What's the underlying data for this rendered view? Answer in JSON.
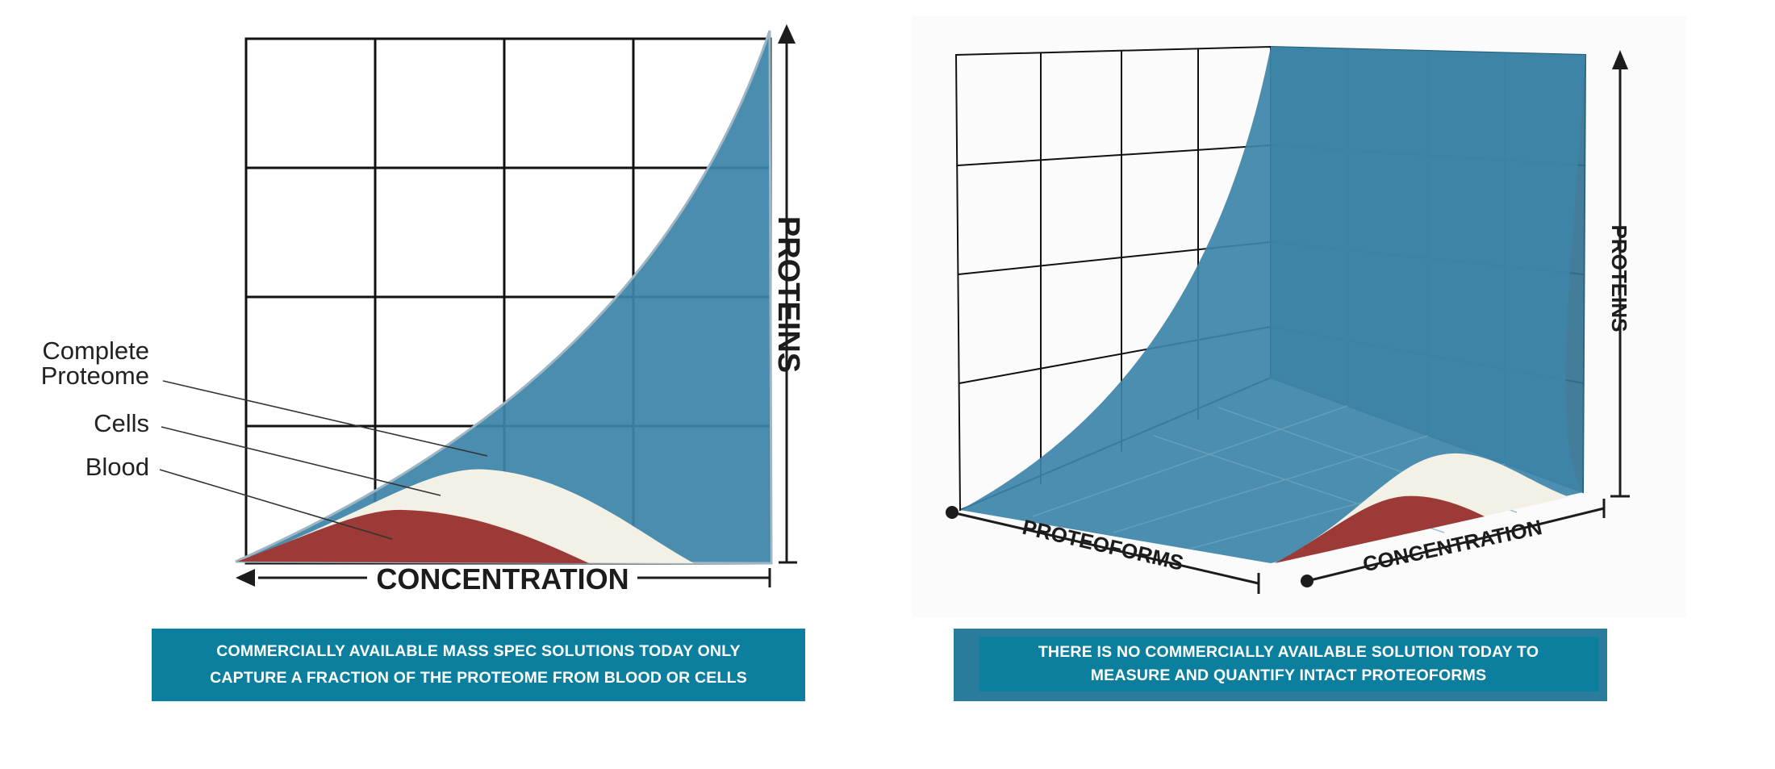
{
  "left_figure": {
    "y_axis_title": "PROTEINS",
    "x_axis_title": "CONCENTRATION",
    "labels": {
      "complete_proteome_line1": "Complete",
      "complete_proteome_line2": "Proteome",
      "cells": "Cells",
      "blood": "Blood"
    }
  },
  "right_figure": {
    "y_axis_title": "PROTEINS",
    "x_axis_title": "PROTEOFORMS",
    "z_axis_title": "CONCENTRATION"
  },
  "captions": {
    "left_line1": "COMMERCIALLY AVAILABLE MASS SPEC SOLUTIONS TODAY ONLY",
    "left_line2": "CAPTURE A FRACTION OF THE PROTEOME FROM BLOOD OR CELLS",
    "right_line1": "THERE IS NO COMMERCIALLY AVAILABLE SOLUTION TODAY TO",
    "right_line2": "MEASURE AND QUANTIFY INTACT PROTEOFORMS"
  },
  "colors": {
    "complete_proteome": "#3d84a8",
    "cells": "#f3f0e6",
    "blood": "#9b3a37",
    "caption_bg": "#0d7f9e",
    "grid": "#111111"
  }
}
